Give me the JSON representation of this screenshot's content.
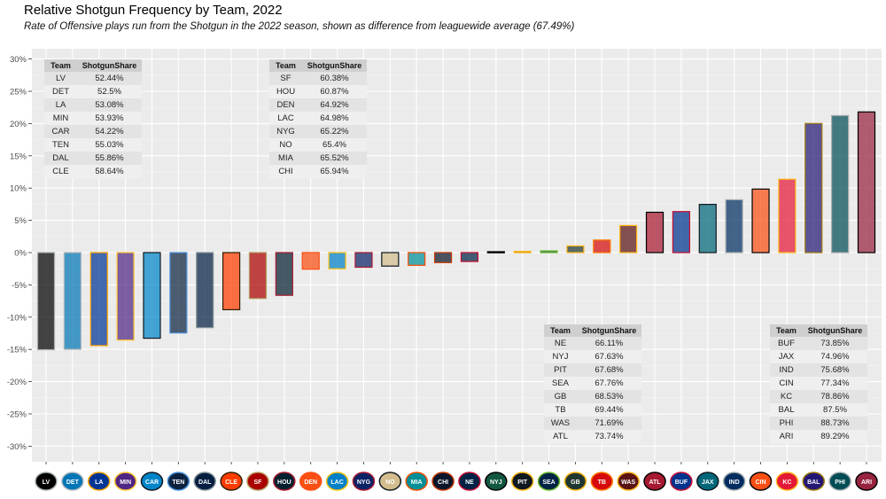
{
  "title": "Relative Shotgun Frequency by Team, 2022",
  "subtitle": "Rate of Offensive plays run from the Shotgun in the 2022 season, shown as difference from leaguewide average (67.49%)",
  "chart_data": {
    "type": "bar",
    "title": "Relative Shotgun Frequency by Team, 2022",
    "subtitle": "Rate of Offensive plays run from the Shotgun in the 2022 season, shown as difference from leaguewide average (67.49%)",
    "xlabel": "",
    "ylabel": "",
    "league_average": 67.49,
    "ylim": [
      -32,
      32
    ],
    "yticks": [
      -30,
      -25,
      -20,
      -15,
      -10,
      -5,
      0,
      5,
      10,
      15,
      20,
      25,
      30
    ],
    "ytick_labels": [
      "-30%",
      "-25%",
      "-20%",
      "-15%",
      "-10%",
      "-5%",
      "0%",
      "5%",
      "10%",
      "15%",
      "20%",
      "25%",
      "30%"
    ],
    "grid": true,
    "x_axis_labels": "team logos",
    "categories": [
      "LV",
      "DET",
      "LA",
      "MIN",
      "CAR",
      "TEN",
      "DAL",
      "CLE",
      "SF",
      "HOU",
      "DEN",
      "LAC",
      "NYG",
      "NO",
      "MIA",
      "CHI",
      "NE",
      "NYJ",
      "PIT",
      "SEA",
      "GB",
      "TB",
      "WAS",
      "ATL",
      "BUF",
      "JAX",
      "IND",
      "CIN",
      "KC",
      "BAL",
      "PHI",
      "ARI"
    ],
    "shotgun_share": [
      52.44,
      52.5,
      53.08,
      53.93,
      54.22,
      55.03,
      55.86,
      58.64,
      60.38,
      60.87,
      64.92,
      64.98,
      65.22,
      65.4,
      65.52,
      65.94,
      66.11,
      67.63,
      67.68,
      67.76,
      68.53,
      69.44,
      71.69,
      73.74,
      73.85,
      74.96,
      75.68,
      77.34,
      78.86,
      87.5,
      88.73,
      89.29
    ],
    "values": [
      -15.05,
      -14.99,
      -14.41,
      -13.56,
      -13.27,
      -12.46,
      -11.63,
      -8.85,
      -7.11,
      -6.62,
      -2.57,
      -2.51,
      -2.27,
      -2.09,
      -1.97,
      -1.55,
      -1.38,
      0.14,
      0.19,
      0.27,
      1.04,
      1.95,
      4.2,
      6.25,
      6.36,
      7.47,
      8.19,
      9.85,
      11.37,
      20.01,
      21.24,
      21.8
    ],
    "fill_colors": [
      "#000000",
      "#0076B6",
      "#003594",
      "#4F2683",
      "#0085CA",
      "#0C2340",
      "#041E42",
      "#FF3C00",
      "#AA0000",
      "#03202F",
      "#FB4F14",
      "#0080C6",
      "#0B2265",
      "#D3BC8D",
      "#008E97",
      "#0B162A",
      "#002244",
      "#125740",
      "#101820",
      "#002244",
      "#203731",
      "#D50A0A",
      "#5A1414",
      "#A71930",
      "#00338D",
      "#006778",
      "#002C5F",
      "#FB4F14",
      "#E31837",
      "#241773",
      "#004C54",
      "#97233F"
    ],
    "outline_colors": [
      "#A5ACAF",
      "#B0B7BC",
      "#FFA300",
      "#FFC62F",
      "#101820",
      "#4B92DB",
      "#869397",
      "#311D00",
      "#B3995D",
      "#A71930",
      "#FB4F14",
      "#FFC20E",
      "#A71930",
      "#101820",
      "#FC4C02",
      "#C83803",
      "#C60C30",
      "#000000",
      "#FFB612",
      "#69BE28",
      "#FFB612",
      "#FF7900",
      "#FFB612",
      "#000000",
      "#C60C30",
      "#101820",
      "#A2AAAD",
      "#000000",
      "#FFB81C",
      "#9E7C0C",
      "#A5ACAF",
      "#000000"
    ],
    "fill_opacity": 0.72,
    "tables": [
      {
        "headers": [
          "Team",
          "ShotgunShare"
        ],
        "rows": [
          [
            "LV",
            "52.44%"
          ],
          [
            "DET",
            "52.5%"
          ],
          [
            "LA",
            "53.08%"
          ],
          [
            "MIN",
            "53.93%"
          ],
          [
            "CAR",
            "54.22%"
          ],
          [
            "TEN",
            "55.03%"
          ],
          [
            "DAL",
            "55.86%"
          ],
          [
            "CLE",
            "58.64%"
          ]
        ]
      },
      {
        "headers": [
          "Team",
          "ShotgunShare"
        ],
        "rows": [
          [
            "SF",
            "60.38%"
          ],
          [
            "HOU",
            "60.87%"
          ],
          [
            "DEN",
            "64.92%"
          ],
          [
            "LAC",
            "64.98%"
          ],
          [
            "NYG",
            "65.22%"
          ],
          [
            "NO",
            "65.4%"
          ],
          [
            "MIA",
            "65.52%"
          ],
          [
            "CHI",
            "65.94%"
          ]
        ]
      },
      {
        "headers": [
          "Team",
          "ShotgunShare"
        ],
        "rows": [
          [
            "NE",
            "66.11%"
          ],
          [
            "NYJ",
            "67.63%"
          ],
          [
            "PIT",
            "67.68%"
          ],
          [
            "SEA",
            "67.76%"
          ],
          [
            "GB",
            "68.53%"
          ],
          [
            "TB",
            "69.44%"
          ],
          [
            "WAS",
            "71.69%"
          ],
          [
            "ATL",
            "73.74%"
          ]
        ]
      },
      {
        "headers": [
          "Team",
          "ShotgunShare"
        ],
        "rows": [
          [
            "BUF",
            "73.85%"
          ],
          [
            "JAX",
            "74.96%"
          ],
          [
            "IND",
            "75.68%"
          ],
          [
            "CIN",
            "77.34%"
          ],
          [
            "KC",
            "78.86%"
          ],
          [
            "BAL",
            "87.5%"
          ],
          [
            "PHI",
            "88.73%"
          ],
          [
            "ARI",
            "89.29%"
          ]
        ]
      }
    ]
  },
  "logo_icons": [
    "raiders-logo-icon",
    "lions-logo-icon",
    "rams-logo-icon",
    "vikings-logo-icon",
    "panthers-logo-icon",
    "titans-logo-icon",
    "cowboys-logo-icon",
    "browns-logo-icon",
    "49ers-logo-icon",
    "texans-logo-icon",
    "broncos-logo-icon",
    "chargers-logo-icon",
    "giants-logo-icon",
    "saints-logo-icon",
    "dolphins-logo-icon",
    "bears-logo-icon",
    "patriots-logo-icon",
    "jets-logo-icon",
    "steelers-logo-icon",
    "seahawks-logo-icon",
    "packers-logo-icon",
    "buccaneers-logo-icon",
    "commanders-logo-icon",
    "falcons-logo-icon",
    "bills-logo-icon",
    "jaguars-logo-icon",
    "colts-logo-icon",
    "bengals-logo-icon",
    "chiefs-logo-icon",
    "ravens-logo-icon",
    "eagles-logo-icon",
    "cardinals-logo-icon"
  ]
}
